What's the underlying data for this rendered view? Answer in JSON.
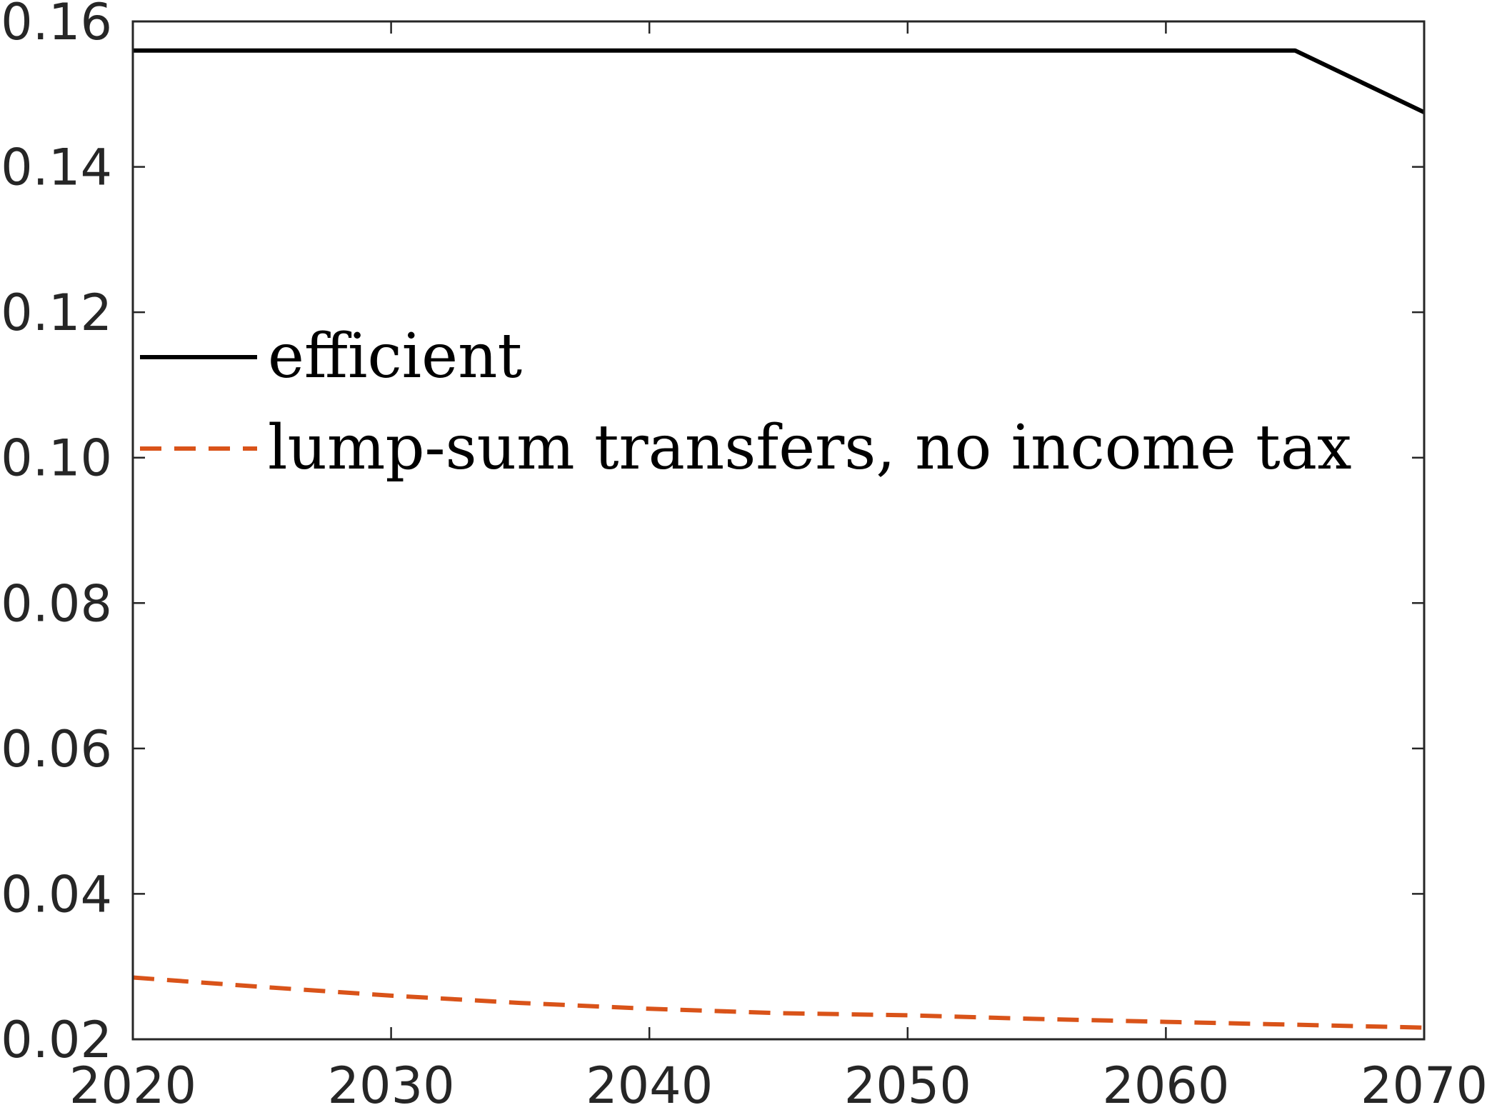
{
  "chart_data": {
    "type": "line",
    "title": "",
    "xlabel": "",
    "ylabel": "",
    "xlim": [
      2020,
      2070
    ],
    "ylim": [
      0.02,
      0.16
    ],
    "xticks": [
      2020,
      2030,
      2040,
      2050,
      2060,
      2070
    ],
    "xtick_labels": [
      "2020",
      "2030",
      "2040",
      "2050",
      "2060",
      "2070"
    ],
    "yticks": [
      0.02,
      0.04,
      0.06,
      0.08,
      0.1,
      0.12,
      0.14,
      0.16
    ],
    "ytick_labels": [
      "0.02",
      "0.04",
      "0.06",
      "0.08",
      "0.10",
      "0.12",
      "0.14",
      "0.16"
    ],
    "grid": false,
    "legend_position": "center-left",
    "series": [
      {
        "name": "efficient",
        "color": "#000000",
        "line_style": "solid",
        "x": [
          2020,
          2025,
          2030,
          2035,
          2040,
          2045,
          2050,
          2055,
          2060,
          2065,
          2070
        ],
        "y": [
          0.156,
          0.156,
          0.156,
          0.156,
          0.156,
          0.156,
          0.156,
          0.156,
          0.156,
          0.156,
          0.1475
        ]
      },
      {
        "name": "lump-sum transfers, no income tax",
        "color": "#D95319",
        "line_style": "dashed",
        "x": [
          2020,
          2025,
          2030,
          2035,
          2040,
          2045,
          2050,
          2055,
          2060,
          2065,
          2070
        ],
        "y": [
          0.0285,
          0.0272,
          0.026,
          0.025,
          0.0242,
          0.0236,
          0.0233,
          0.0228,
          0.0224,
          0.022,
          0.0216
        ]
      }
    ]
  }
}
